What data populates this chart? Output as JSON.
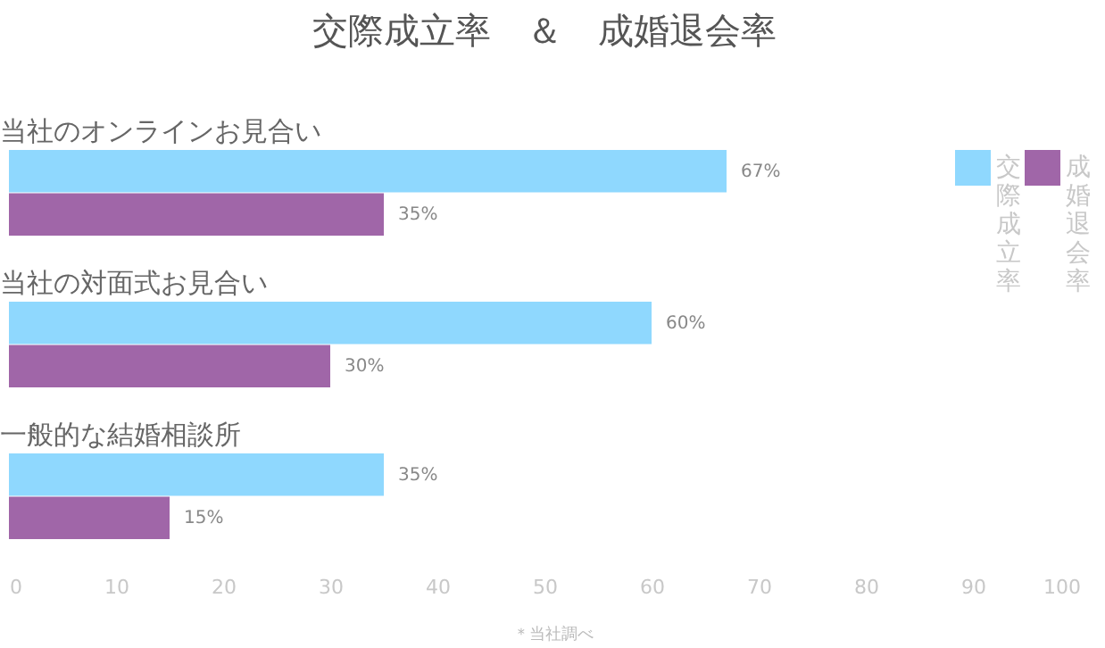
{
  "chart_data": {
    "type": "bar",
    "orientation": "horizontal",
    "title": "交際成立率　＆　成婚退会率",
    "categories": [
      "当社のオンラインお見合い",
      "当社の対面式お見合い",
      "一般的な結婚相談所"
    ],
    "series": [
      {
        "name": "交際成立率",
        "color": "#8fd8fe",
        "values": [
          67,
          60,
          35
        ],
        "value_labels": [
          "67%",
          "60%",
          "35%"
        ]
      },
      {
        "name": "成婚退会率",
        "color": "#a066a8",
        "values": [
          35,
          30,
          15
        ],
        "value_labels": [
          "35%",
          "30%",
          "15%"
        ]
      }
    ],
    "xlim": [
      0,
      100
    ],
    "xticks": [
      0,
      10,
      20,
      30,
      40,
      50,
      60,
      70,
      80,
      90,
      100
    ],
    "legend": "top right",
    "grid": false,
    "annotations": [
      "＊当社調べ"
    ]
  }
}
